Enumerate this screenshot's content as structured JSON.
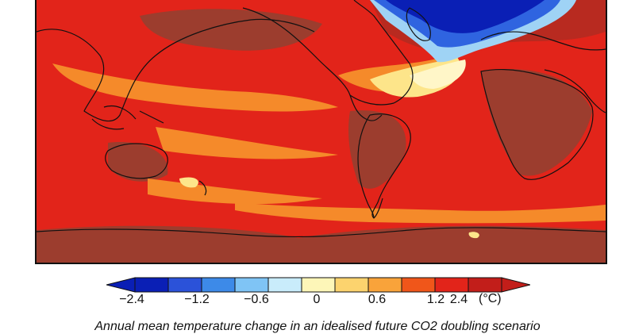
{
  "colorbar": {
    "unit": "(°C)",
    "ticks": [
      "−2.4",
      "−1.2",
      "−0.6",
      "0",
      "0.6",
      "1.2",
      "2.4"
    ],
    "colors": [
      "#0a1fb5",
      "#2b52d9",
      "#3d8ae8",
      "#7fc4f5",
      "#c9ecfb",
      "#fdf6b8",
      "#fcd36e",
      "#f9a33a",
      "#f0561a",
      "#e2241a",
      "#c21e1a"
    ]
  },
  "map_colors": {
    "background": "#e2241a",
    "deep_red": "#b82a20",
    "brown_land": "#9c3d2e",
    "orange": "#f58a2a",
    "yellow": "#fde58a",
    "pale": "#fff6c8",
    "light_blue": "#9fd3f5",
    "blue": "#2f64e0",
    "dark_blue": "#0a1fb5",
    "coast": "#111111"
  },
  "caption": "Annual mean temperature change in an idealised future CO2 doubling scenario"
}
